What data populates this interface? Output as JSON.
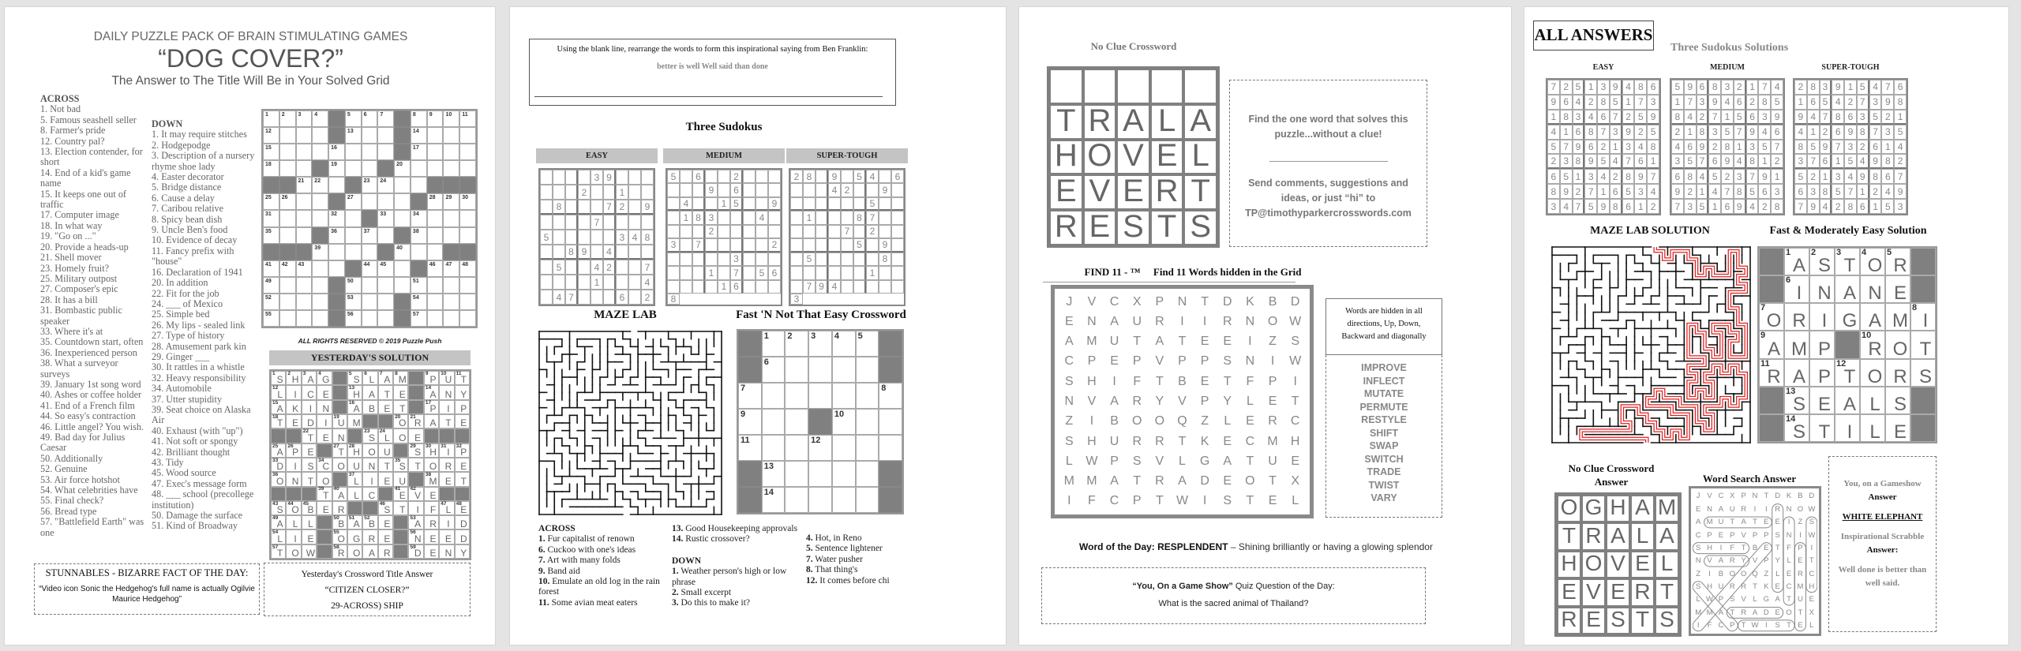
{
  "page1": {
    "header": "DAILY PUZZLE PACK OF BRAIN STIMULATING GAMES",
    "title": "“DOG COVER?”",
    "subtitle": "The Answer to The Title Will Be in Your Solved Grid",
    "across_label": "ACROSS",
    "down_label": "DOWN",
    "across": [
      "1.  Not bad",
      "5. Famous seashell seller",
      "8.  Farmer's pride",
      "12.  Country pal?",
      "13. Election contender, for short",
      "14. End of a kid's game name",
      "15. It keeps one out of traffic",
      "17.  Computer image",
      "18.  In what way",
      "19. \"Go on ...\"",
      "20. Provide a heads-up",
      "21. Shell mover",
      "23. Homely fruit?",
      "25. Military outpost",
      "27. Composer's epic",
      "28. It has a bill",
      "31. Bombastic public speaker",
      "33. Where it's at",
      "35.  Countdown start, often",
      "36. Inexperienced person",
      "38. What a surveyor surveys",
      "39. January 1st song word",
      "40. Ashes or coffee holder",
      "41. End of a French film",
      "44. So easy's contraction",
      "46. Little angel? You wish.",
      "49. Bad day for Julius Caesar",
      "50. Additionally",
      "52.  Genuine",
      "53.  Air force hotshot",
      "54. What celebrities have",
      "55. Final check?",
      "56.  Bread type",
      "57. \"Battlefield Earth\" was one"
    ],
    "down": [
      "1. It may require stitches",
      "2. Hodgepodge",
      "3. Description of a nursery rhyme shoe lady",
      "4.  Easter decorator",
      "5.  Bridge distance",
      "6.  Cause a delay",
      "7.  Caribou relative",
      "8. Spicy bean dish",
      "9. Uncle Ben's food",
      "10.  Evidence of decay",
      "11. Fancy prefix with \"house\"",
      "16. Declaration of 1941",
      "20.  In addition",
      "22. Fit for the job",
      "24. ___ of Mexico",
      "25.  Simple bed",
      "26. My lips - sealed link",
      "27. Type of history",
      "28. Amusement park kin",
      "29. Ginger ___",
      "30.  It rattles in a whistle",
      "32. Heavy responsibility",
      "34.  Automobile",
      "37. Utter stupidity",
      "39.  Seat choice on Alaska Air",
      "40. Exhaust (with \"up\")",
      "41.  Not soft or spongy",
      "42.  Brilliant thought",
      "43.  Tidy",
      "45.  Wood source",
      "47. Exec's message form",
      "48. ___ school (precollege institution)",
      "50. Damage the surface",
      "51. Kind of Broadway"
    ],
    "grid": [
      "....#...#....",
      "....#...#....",
      "........#....",
      "...#...#.....",
      "##...#....###",
      "....#....#...",
      "......#......",
      "...#....#....",
      "###....#...##",
      ".....#...#...",
      "....#........",
      "....#...#....",
      "....#...#...."
    ],
    "rights": "ALL RIGHTS RESERVED © 2019 Puzzle Push",
    "yesterday_header": "YESTERDAY'S SOLUTION",
    "yesterday_grid": [
      "SHAG#SLAM#PUT",
      "LICE#HATE#ANY",
      "AKIN#ABET#PIP",
      "TEDIUM##ORATE",
      "##TEN#SLOE###",
      "APE#THOU#SHIP",
      "DISCOUNTSTORE",
      "ONTO#LIEU#MET",
      "###TALC#EVE##",
      "SOBER##STIFLE",
      "ALL#BABE#ARID",
      "LIE#OGRE#NEED",
      "TOW#ROAR#DENY"
    ],
    "stunnables_title": "STUNNABLES - BIZARRE FACT OF THE DAY:",
    "stunnables_text": "“Video icon Sonic the Hedgehog's full name is actually Ogilvie Maurice Hedgehog”",
    "yesterday_title_label": "Yesterday's Crossword Title Answer",
    "yesterday_title_question": "“CITIZEN CLOSER?”",
    "yesterday_title_answer": "29-ACROSS) SHIP"
  },
  "page2": {
    "franklin_instructions": "Using the blank line, rearrange the words to form this inspirational saying from Ben Franklin:",
    "franklin_words": "better is well Well said than done",
    "sudoku_title": "Three Sudokus",
    "sudokus": [
      {
        "label": "EASY",
        "cells": "....39......2..1...8...72.9....7....5.....348..89.4....5..42..7....1...4.47...6.2"
      },
      {
        "label": "MEDIUM",
        "cells": "5.6..2......9.6....4..15..9.183...4....2.....3.7.....2.....3......1.7.56....16...8"
      },
      {
        "label": "SUPER-TOUGH",
        "cells": "28.9.54.6...42..9.......5...1...87......7.2.......5.9..5.....8.......1...794.....3"
      }
    ],
    "maze_title": "MAZE LAB",
    "crossword_title": "Fast 'N Not That Easy Crossword",
    "crossword_grid": [
      "#.....#",
      "#.....#",
      ".......",
      "...#...",
      ".......",
      "#.....#",
      "#.....#"
    ],
    "clue_columns": [
      [
        {
          "head": "ACROSS"
        },
        {
          "n": "1.",
          "t": " Fur capitalist of renown"
        },
        {
          "n": "6.",
          "t": " Cuckoo with one's ideas"
        },
        {
          "n": "7.",
          "t": " Art with many folds"
        },
        {
          "n": "9.",
          "t": " Band aid"
        },
        {
          "n": "10.",
          "t": " Emulate an old log in the rain forest"
        },
        {
          "n": "11.",
          "t": " Some avian meat eaters"
        }
      ],
      [
        {
          "n": "13.",
          "t": " Good Housekeeping approvals"
        },
        {
          "n": "14.",
          "t": " Rustic crossover?"
        },
        {
          "gap": true
        },
        {
          "head": "DOWN"
        },
        {
          "n": "1.",
          "t": " Weather person's high or low phrase"
        },
        {
          "n": "2.",
          "t": " Small excerpt"
        },
        {
          "n": "3.",
          "t": " Do this to make it?"
        }
      ],
      [
        {
          "n": "4.",
          "t": " Hot, in Reno"
        },
        {
          "n": "5.",
          "t": " Sentence lightener"
        },
        {
          "n": "7.",
          "t": " Water pusher"
        },
        {
          "n": "8.",
          "t": " That thing's"
        },
        {
          "n": "12.",
          "t": " It comes before chi"
        }
      ]
    ]
  },
  "page3": {
    "noclue_title": "No Clue Crossword",
    "noclue_grid": [
      "     ",
      "TRALA",
      "HOVEL",
      "EVERT",
      "RESTS"
    ],
    "info_text": "Find the one word that solves this puzzle...without a clue!",
    "contact_text": "Send comments, suggestions and ideas, or just “hi” to",
    "contact_email": "TP@timothyparkercrosswords.com",
    "find11_label": "FIND 11 - ™",
    "find11_title": "Find 11 Words hidden in the Grid",
    "wordsearch": [
      "JVCXPNTDKBD",
      "ENAURIIRNOW",
      "AMUTATEEIZS",
      "CPEPVPPSNIW",
      "SHIFTBETFPI",
      "NVARYVPYLET",
      "ZIBOOQZLERC",
      "SHURRTKECMH",
      "LWPSVLGATUE",
      "MMATRADEOTX",
      "IFCPTWISTEL"
    ],
    "directions": "Words are hidden in all directions, Up, Down, Backward and diagonally",
    "words": [
      "IMPROVE",
      "INFLECT",
      "MUTATE",
      "PERMUTE",
      "RESTYLE",
      "SHIFT",
      "SWAP",
      "SWITCH",
      "TRADE",
      "TWIST",
      "VARY"
    ],
    "word_of_day_label": "Word of the Day: RESPLENDENT",
    "word_of_day_def": " – Shining brilliantly or having a glowing splendor",
    "quiz_label": "“You, On a Game Show”",
    "quiz_label_rest": " Quiz Question of the Day:",
    "quiz_question": "What is the sacred animal of Thailand?"
  },
  "page4": {
    "title": "ALL ANSWERS",
    "sudoku_title": "Three Sudokus Solutions",
    "sudokus": [
      {
        "label": "EASY",
        "cells": "725139486964285173183467259416873925579621348238954761651342897892716534347598612"
      },
      {
        "label": "MEDIUM",
        "cells": "596832174173946285842715639218357946469281357357694812684523791921478563735169428"
      },
      {
        "label": "SUPER-TOUGH",
        "cells": "283915476165427398947863521412698735859732614376154982521349867638571249794286153"
      }
    ],
    "maze_title": "MAZE LAB SOLUTION",
    "crossword_title": "Fast & Moderately Easy Solution",
    "crossword_grid": [
      "#ASTOR#",
      "#INANE#",
      "ORIGAMI",
      "AMP#ROT",
      "RAPTORS",
      "#SEALS#",
      "#STILE#"
    ],
    "noclue_title": "No Clue Crossword Answer",
    "noclue_grid": [
      "OGHAM",
      "TRALA",
      "HOVEL",
      "EVERT",
      "RESTS"
    ],
    "wordsearch_title": "Word Search Answer",
    "gameshow_label": "You, on a Gameshow",
    "gameshow_answer_label": "Answer",
    "gameshow_answer": "WHITE ELEPHANT",
    "scrabble_label": "Inspirational Scrabble",
    "scrabble_answer_label": "Answer:",
    "scrabble_answer": "Well done is better than well said."
  },
  "colors": {
    "background": "#e4e4e4",
    "page": "#ffffff",
    "block": "#808080",
    "text": "#555555",
    "maze_path": "#e02020"
  }
}
